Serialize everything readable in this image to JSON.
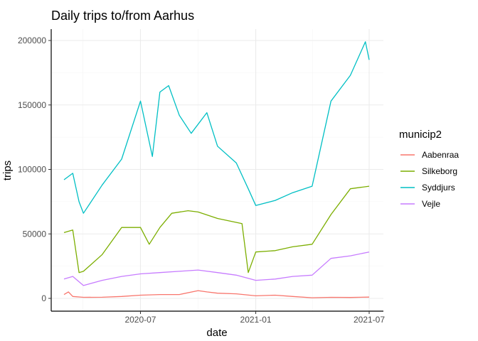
{
  "chart_data": {
    "type": "line",
    "title": "Daily trips to/from Aarhus",
    "xlabel": "date",
    "ylabel": "trips",
    "x_range": [
      "2020-03-01",
      "2021-07-01"
    ],
    "x_ticks": [
      {
        "date": "2020-07-01",
        "label": "2020-07"
      },
      {
        "date": "2021-01-01",
        "label": "2021-01"
      },
      {
        "date": "2021-07-01",
        "label": "2021-07"
      }
    ],
    "ylim": [
      0,
      200000
    ],
    "y_ticks": [
      0,
      50000,
      100000,
      150000,
      200000
    ],
    "y_tick_labels": [
      "0",
      "50000",
      "100000",
      "150000",
      "200000"
    ],
    "grid": true,
    "legend": {
      "title": "municip2",
      "placement": "right"
    },
    "series": [
      {
        "name": "Aabenraa",
        "color": "#f8766d",
        "points": [
          [
            "2020-03-01",
            3000
          ],
          [
            "2020-03-08",
            5000
          ],
          [
            "2020-03-15",
            1500
          ],
          [
            "2020-04-01",
            800
          ],
          [
            "2020-05-01",
            900
          ],
          [
            "2020-06-01",
            1500
          ],
          [
            "2020-07-01",
            2500
          ],
          [
            "2020-08-01",
            3000
          ],
          [
            "2020-09-01",
            3000
          ],
          [
            "2020-10-01",
            6000
          ],
          [
            "2020-10-15",
            5000
          ],
          [
            "2020-11-01",
            4000
          ],
          [
            "2020-12-01",
            3500
          ],
          [
            "2021-01-01",
            2000
          ],
          [
            "2021-02-01",
            2500
          ],
          [
            "2021-03-01",
            1500
          ],
          [
            "2021-04-01",
            500
          ],
          [
            "2021-05-01",
            800
          ],
          [
            "2021-06-01",
            700
          ],
          [
            "2021-07-01",
            1000
          ]
        ]
      },
      {
        "name": "Silkeborg",
        "color": "#7cae00",
        "points": [
          [
            "2020-03-01",
            51000
          ],
          [
            "2020-03-15",
            53000
          ],
          [
            "2020-03-25",
            20000
          ],
          [
            "2020-04-01",
            21000
          ],
          [
            "2020-05-01",
            34000
          ],
          [
            "2020-06-01",
            55000
          ],
          [
            "2020-07-01",
            55000
          ],
          [
            "2020-07-15",
            42000
          ],
          [
            "2020-08-01",
            55000
          ],
          [
            "2020-08-20",
            66000
          ],
          [
            "2020-09-15",
            68000
          ],
          [
            "2020-10-01",
            67000
          ],
          [
            "2020-11-01",
            62000
          ],
          [
            "2020-12-10",
            58000
          ],
          [
            "2020-12-20",
            20000
          ],
          [
            "2021-01-01",
            36000
          ],
          [
            "2021-02-01",
            37000
          ],
          [
            "2021-03-01",
            40000
          ],
          [
            "2021-04-01",
            42000
          ],
          [
            "2021-05-01",
            65000
          ],
          [
            "2021-06-01",
            85000
          ],
          [
            "2021-07-01",
            87000
          ]
        ]
      },
      {
        "name": "Syddjurs",
        "color": "#00bfc4",
        "points": [
          [
            "2020-03-01",
            92000
          ],
          [
            "2020-03-15",
            97000
          ],
          [
            "2020-03-25",
            75000
          ],
          [
            "2020-04-01",
            66000
          ],
          [
            "2020-05-01",
            88000
          ],
          [
            "2020-06-01",
            108000
          ],
          [
            "2020-07-01",
            153000
          ],
          [
            "2020-07-20",
            110000
          ],
          [
            "2020-08-01",
            160000
          ],
          [
            "2020-08-15",
            165000
          ],
          [
            "2020-09-01",
            142000
          ],
          [
            "2020-09-20",
            128000
          ],
          [
            "2020-10-15",
            144000
          ],
          [
            "2020-11-01",
            118000
          ],
          [
            "2020-12-01",
            105000
          ],
          [
            "2020-12-20",
            85000
          ],
          [
            "2021-01-01",
            72000
          ],
          [
            "2021-02-01",
            76000
          ],
          [
            "2021-03-01",
            82000
          ],
          [
            "2021-04-01",
            87000
          ],
          [
            "2021-05-01",
            153000
          ],
          [
            "2021-06-01",
            173000
          ],
          [
            "2021-06-25",
            199000
          ],
          [
            "2021-07-01",
            185000
          ]
        ]
      },
      {
        "name": "Vejle",
        "color": "#c77cff",
        "points": [
          [
            "2020-03-01",
            15000
          ],
          [
            "2020-03-15",
            17000
          ],
          [
            "2020-04-01",
            10000
          ],
          [
            "2020-05-01",
            14000
          ],
          [
            "2020-06-01",
            17000
          ],
          [
            "2020-07-01",
            19000
          ],
          [
            "2020-08-01",
            20000
          ],
          [
            "2020-09-01",
            21000
          ],
          [
            "2020-10-01",
            22000
          ],
          [
            "2020-11-01",
            20000
          ],
          [
            "2020-12-01",
            18000
          ],
          [
            "2021-01-01",
            14000
          ],
          [
            "2021-02-01",
            15000
          ],
          [
            "2021-03-01",
            17000
          ],
          [
            "2021-04-01",
            18000
          ],
          [
            "2021-05-01",
            31000
          ],
          [
            "2021-06-01",
            33000
          ],
          [
            "2021-07-01",
            36000
          ]
        ]
      }
    ]
  }
}
